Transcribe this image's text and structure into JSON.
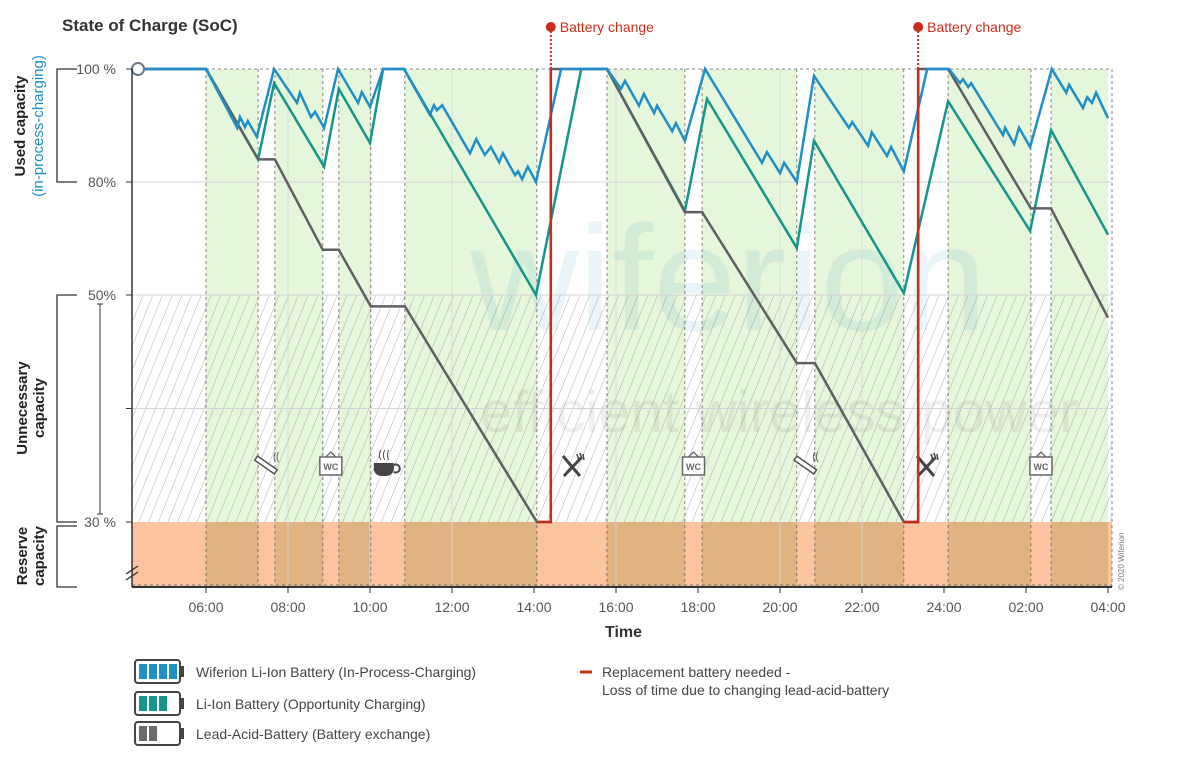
{
  "chart_data": {
    "type": "line",
    "title": "State of Charge (SoC)",
    "xlabel": "Time",
    "xlim": [
      4.2,
      28
    ],
    "ylim": [
      0,
      100
    ],
    "y_scale": "piecewise (non-linear): 100–80, 80–50, 50–30 bands, below 30 axis break",
    "y_ticks": [
      {
        "value": 100,
        "label": "100 %"
      },
      {
        "value": 80,
        "label": "80%"
      },
      {
        "value": 50,
        "label": "50%"
      },
      {
        "value": 30,
        "label": "30 %"
      }
    ],
    "x_ticks": [
      {
        "value": 6,
        "label": "06:00"
      },
      {
        "value": 8,
        "label": "08:00"
      },
      {
        "value": 10,
        "label": "10:00"
      },
      {
        "value": 12,
        "label": "12:00"
      },
      {
        "value": 14,
        "label": "14:00"
      },
      {
        "value": 16,
        "label": "16:00"
      },
      {
        "value": 18,
        "label": "18:00"
      },
      {
        "value": 20,
        "label": "20:00"
      },
      {
        "value": 22,
        "label": "22:00"
      },
      {
        "value": 24,
        "label": "24:00"
      },
      {
        "value": 26,
        "label": "02:00"
      },
      {
        "value": 28,
        "label": "04:00"
      }
    ],
    "grid": true,
    "zones": [
      {
        "label": "Used capacity",
        "sublabel": "(in-process-charging)",
        "from": 80,
        "to": 100
      },
      {
        "label": "Unnecessary capacity",
        "from": 30,
        "to": 50
      },
      {
        "label": "Reserve capacity",
        "from": 0,
        "to": 30
      }
    ],
    "breaks": [
      {
        "start": 7.27,
        "end": 7.68,
        "icon": "cigarette-icon"
      },
      {
        "start": 8.85,
        "end": 9.24,
        "icon": "wc-icon"
      },
      {
        "start": 10.02,
        "end": 10.85,
        "icon": "coffee-icon"
      },
      {
        "start": 14.07,
        "end": 15.78,
        "icon": "cutlery-icon"
      },
      {
        "start": 17.68,
        "end": 18.1,
        "icon": "wc-icon"
      },
      {
        "start": 20.41,
        "end": 20.85,
        "icon": "cigarette-icon"
      },
      {
        "start": 23.02,
        "end": 24.1,
        "icon": "cutlery-icon"
      },
      {
        "start": 26.12,
        "end": 26.61,
        "icon": "wc-icon"
      }
    ],
    "wc_label": "WC",
    "battery_changes": [
      {
        "time": 14.41,
        "label": "Battery change"
      },
      {
        "time": 23.37,
        "label": "Battery change"
      }
    ],
    "series": [
      {
        "name": "Wiferion Li-Ion Battery (In-Process-Charging)",
        "color": "#1f8fc8",
        "points": [
          [
            4.2,
            100
          ],
          [
            6,
            100
          ],
          [
            6.76,
            89.6
          ],
          [
            6.83,
            91.5
          ],
          [
            6.95,
            89.7
          ],
          [
            7.02,
            90.8
          ],
          [
            7.24,
            88
          ],
          [
            7.66,
            100
          ],
          [
            8.22,
            94
          ],
          [
            8.29,
            95.8
          ],
          [
            8.56,
            91.5
          ],
          [
            8.66,
            92.4
          ],
          [
            8.88,
            89.6
          ],
          [
            9.22,
            100
          ],
          [
            9.71,
            94
          ],
          [
            9.8,
            95.9
          ],
          [
            10,
            93.3
          ],
          [
            10.32,
            100
          ],
          [
            10.83,
            100
          ],
          [
            11.46,
            91.9
          ],
          [
            11.56,
            93.6
          ],
          [
            11.63,
            92.7
          ],
          [
            11.76,
            93.6
          ],
          [
            12.44,
            85.1
          ],
          [
            12.59,
            87.6
          ],
          [
            12.8,
            84.8
          ],
          [
            12.95,
            86.2
          ],
          [
            13.15,
            83.5
          ],
          [
            13.24,
            85.1
          ],
          [
            13.54,
            81.2
          ],
          [
            13.61,
            81.9
          ],
          [
            13.71,
            80.5
          ],
          [
            13.85,
            82.7
          ],
          [
            14.05,
            80
          ],
          [
            14.66,
            100
          ],
          [
            15.78,
            100
          ],
          [
            16.12,
            96.5
          ],
          [
            16.22,
            97.9
          ],
          [
            16.56,
            93.5
          ],
          [
            16.68,
            95.6
          ],
          [
            16.93,
            92.2
          ],
          [
            17,
            93.5
          ],
          [
            17.37,
            89
          ],
          [
            17.46,
            90.4
          ],
          [
            17.68,
            87.3
          ],
          [
            18.17,
            100
          ],
          [
            19.56,
            83.4
          ],
          [
            19.68,
            85.3
          ],
          [
            20,
            81.6
          ],
          [
            20.1,
            83.4
          ],
          [
            20.41,
            80
          ],
          [
            20.83,
            98.8
          ],
          [
            21.68,
            89.6
          ],
          [
            21.76,
            90.6
          ],
          [
            22.15,
            86.4
          ],
          [
            22.24,
            88.8
          ],
          [
            22.61,
            84.6
          ],
          [
            22.71,
            86.2
          ],
          [
            23.02,
            81.9
          ],
          [
            23.59,
            100
          ],
          [
            24.12,
            100
          ],
          [
            24.39,
            97.5
          ],
          [
            24.46,
            98.2
          ],
          [
            24.59,
            96.8
          ],
          [
            24.66,
            97.5
          ],
          [
            25.44,
            88.3
          ],
          [
            25.49,
            89.6
          ],
          [
            25.71,
            86.7
          ],
          [
            25.83,
            89.6
          ],
          [
            26.1,
            86.2
          ],
          [
            26.63,
            100
          ],
          [
            26.98,
            95.8
          ],
          [
            27.05,
            97.2
          ],
          [
            27.39,
            93.1
          ],
          [
            27.49,
            95
          ],
          [
            27.61,
            94
          ],
          [
            27.71,
            95.8
          ],
          [
            28,
            91.3
          ]
        ]
      },
      {
        "name": "Li-Ion Battery (Opportunity Charging)",
        "color": "#14968a",
        "points": [
          [
            4.2,
            100
          ],
          [
            6,
            100
          ],
          [
            7.27,
            84
          ],
          [
            7.66,
            97.5
          ],
          [
            8.88,
            82.7
          ],
          [
            9.24,
            96.5
          ],
          [
            10,
            86.9
          ],
          [
            10.32,
            100
          ],
          [
            10.83,
            100
          ],
          [
            14.05,
            50
          ],
          [
            15.15,
            100
          ],
          [
            15.78,
            100
          ],
          [
            17.68,
            72.3
          ],
          [
            18.22,
            94.7
          ],
          [
            20.41,
            62.5
          ],
          [
            20.83,
            87.3
          ],
          [
            23.02,
            50.5
          ],
          [
            24.1,
            94.3
          ],
          [
            26.1,
            67
          ],
          [
            26.61,
            89.2
          ],
          [
            28,
            66
          ]
        ]
      },
      {
        "name": "Lead-Acid-Battery (Battery exchange)",
        "color": "#5f6062",
        "points": [
          [
            4.2,
            100
          ],
          [
            6,
            100
          ],
          [
            7.27,
            84
          ],
          [
            7.68,
            84
          ],
          [
            8.85,
            62
          ],
          [
            9.24,
            62
          ],
          [
            10.02,
            49
          ],
          [
            10.85,
            49
          ],
          [
            14.07,
            30
          ],
          [
            14.41,
            30
          ],
          [
            14.41,
            100
          ],
          [
            15.78,
            100
          ],
          [
            17.68,
            72
          ],
          [
            18.1,
            72
          ],
          [
            20.41,
            44
          ],
          [
            20.85,
            44
          ],
          [
            23.02,
            30
          ],
          [
            23.37,
            30
          ],
          [
            23.37,
            100
          ],
          [
            24.1,
            100
          ],
          [
            26.12,
            73
          ],
          [
            26.61,
            73
          ],
          [
            28,
            48
          ]
        ]
      },
      {
        "name": "Replacement battery needed - Loss of time due to changing lead-acid-battery",
        "color": "#cc2b1a",
        "segments": [
          [
            [
              14.07,
              30
            ],
            [
              14.41,
              30
            ],
            [
              14.41,
              100
            ]
          ],
          [
            [
              23.02,
              30
            ],
            [
              23.37,
              30
            ],
            [
              23.37,
              100
            ]
          ]
        ]
      }
    ],
    "legend": {
      "placement": "bottom",
      "items": [
        {
          "label": "Wiferion Li-Ion Battery (In-Process-Charging)",
          "icon": "battery-full-icon",
          "color": "#1f8fc8"
        },
        {
          "label": "Li-Ion Battery (Opportunity Charging)",
          "icon": "battery-three-quarter-icon",
          "color": "#14968a"
        },
        {
          "label": "Lead-Acid-Battery (Battery exchange)",
          "icon": "battery-half-icon",
          "color": "#5f6062"
        }
      ],
      "replacement": {
        "line1": "Replacement battery needed -",
        "line2": "Loss of time due to changing lead-acid-battery",
        "color": "#cc2b1a"
      }
    },
    "copyright": "© 2020 Wiferion",
    "watermark": {
      "line1": "wiferion",
      "line2": "efficient wireless power"
    }
  }
}
